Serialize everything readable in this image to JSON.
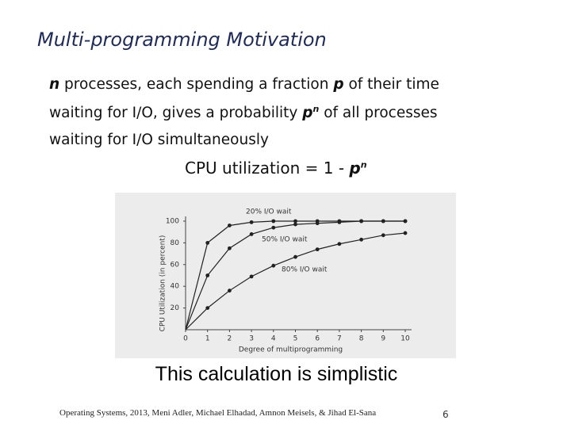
{
  "title": "Multi-programming Motivation",
  "body": {
    "lines": [
      [
        "n",
        " processes, each spending a fraction ",
        "p",
        " of their time"
      ],
      [
        "waiting for I/O, gives a probability ",
        "p",
        "n",
        " of all processes"
      ],
      [
        "waiting for I/O simultaneously"
      ]
    ]
  },
  "formula": [
    "CPU utilization = 1 - ",
    "p",
    "n"
  ],
  "chart": {
    "type": "line",
    "xlabel": "Degree of multiprogramming",
    "ylabel": "CPU Utilization (in percent)",
    "x": [
      0,
      1,
      2,
      3,
      4,
      5,
      6,
      7,
      8,
      9,
      10
    ],
    "series": [
      {
        "name": "20% I/O wait",
        "color": "#222222",
        "values": [
          0,
          80,
          96,
          99,
          100,
          100,
          100,
          100,
          100,
          100,
          100
        ]
      },
      {
        "name": "50% I/O wait",
        "color": "#222222",
        "values": [
          0,
          50,
          75,
          88,
          94,
          97,
          98,
          99,
          100,
          100,
          100
        ]
      },
      {
        "name": "80% I/O wait",
        "color": "#222222",
        "values": [
          0,
          20,
          36,
          49,
          59,
          67,
          74,
          79,
          83,
          87,
          89
        ]
      }
    ],
    "xlim": [
      0,
      10
    ],
    "ylim": [
      0,
      100
    ],
    "xticks": [
      0,
      1,
      2,
      3,
      4,
      5,
      6,
      7,
      8,
      9,
      10
    ],
    "yticks": [
      20,
      40,
      60,
      80,
      100
    ]
  },
  "caption": "This calculation is simplistic",
  "footer": "Operating Systems, 2013, Meni Adler, Michael Elhadad, Amnon Meisels, & Jihad El-Sana",
  "page_number": "6"
}
